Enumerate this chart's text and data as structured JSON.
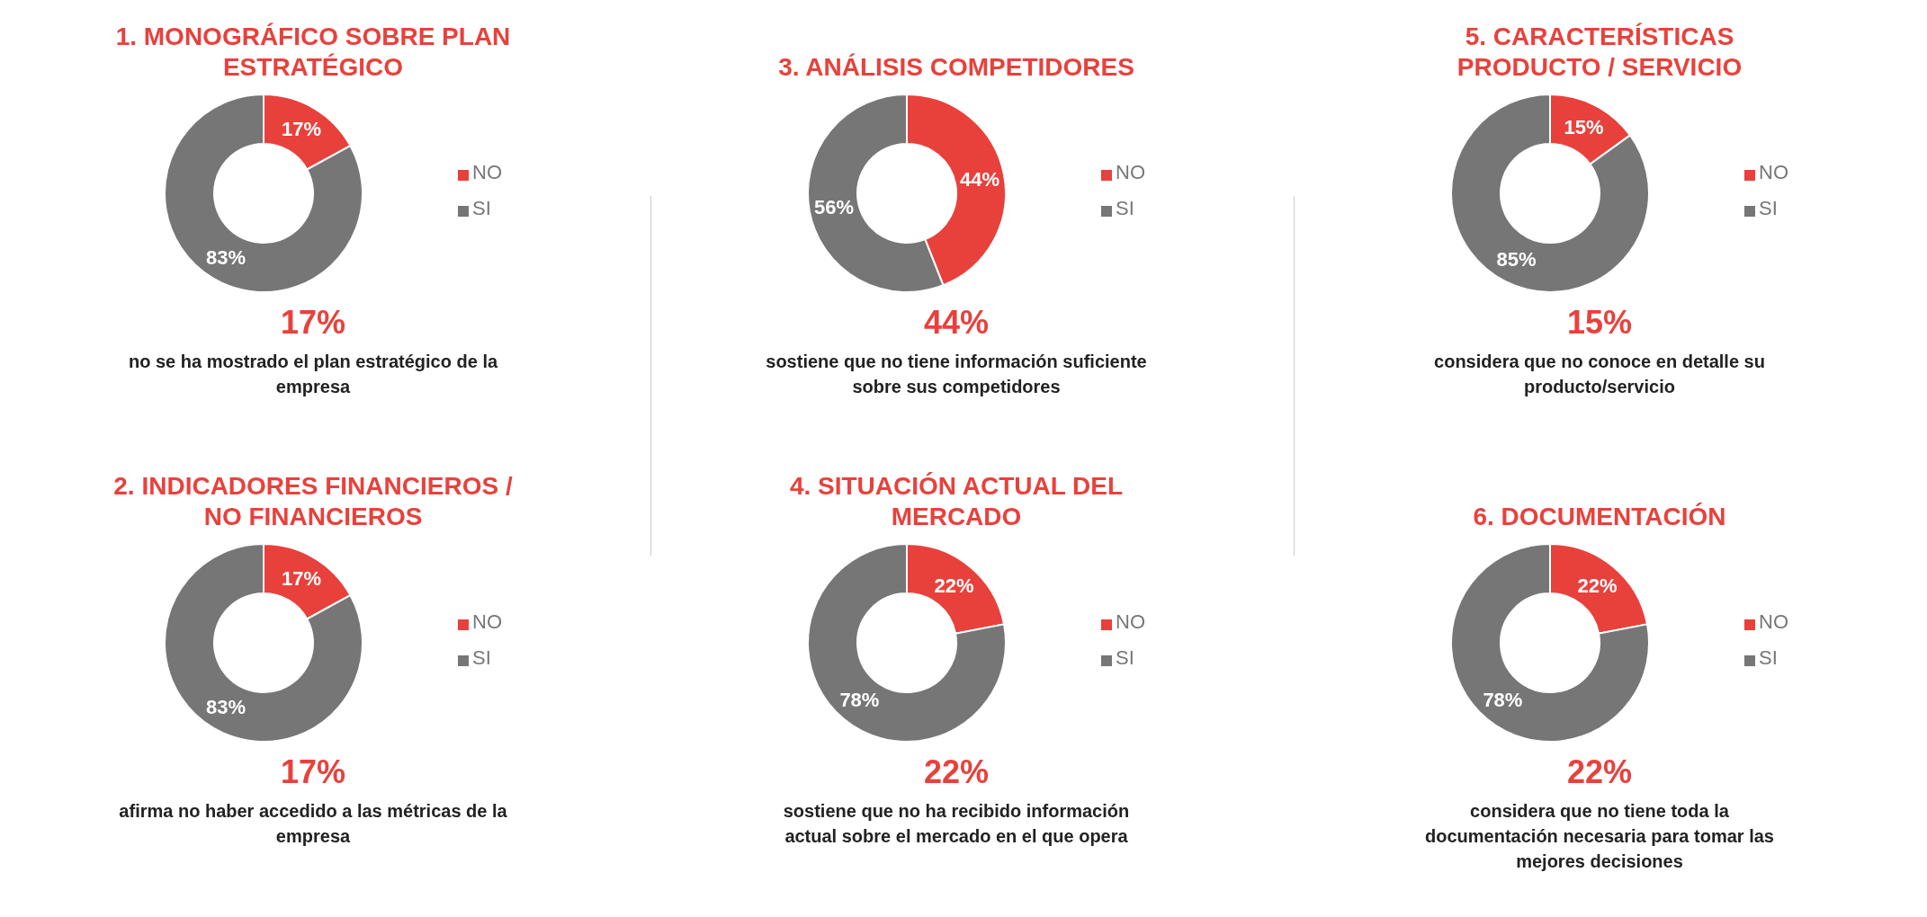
{
  "chart_data": [
    {
      "type": "donut",
      "title": "1. MONOGRÁFICO SOBRE PLAN ESTRATÉGICO",
      "categories": [
        "NO",
        "SI"
      ],
      "values": [
        17,
        83
      ],
      "colors": [
        "#e8413c",
        "#767676"
      ],
      "value_labels": [
        "17%",
        "83%"
      ],
      "legend": "right",
      "annotations": [
        "17%",
        "no se ha mostrado el plan estratégico de la empresa"
      ]
    },
    {
      "type": "donut",
      "title": "2. INDICADORES FINANCIEROS / NO FINANCIEROS",
      "categories": [
        "NO",
        "SI"
      ],
      "values": [
        17,
        83
      ],
      "colors": [
        "#e8413c",
        "#767676"
      ],
      "value_labels": [
        "17%",
        "83%"
      ],
      "legend": "right",
      "annotations": [
        "17%",
        "afirma no haber accedido a las métricas de la empresa"
      ]
    },
    {
      "type": "donut",
      "title": "3. ANÁLISIS COMPETIDORES",
      "categories": [
        "NO",
        "SI"
      ],
      "values": [
        44,
        56
      ],
      "colors": [
        "#e8413c",
        "#767676"
      ],
      "value_labels": [
        "44%",
        "56%"
      ],
      "legend": "right",
      "annotations": [
        "44%",
        "sostiene que no tiene información suficiente sobre sus competidores"
      ]
    },
    {
      "type": "donut",
      "title": "4. SITUACIÓN ACTUAL DEL MERCADO",
      "categories": [
        "NO",
        "SI"
      ],
      "values": [
        22,
        78
      ],
      "colors": [
        "#e8413c",
        "#767676"
      ],
      "value_labels": [
        "22%",
        "78%"
      ],
      "legend": "right",
      "annotations": [
        "22%",
        "sostiene que no ha recibido información actual sobre el mercado en el que opera"
      ]
    },
    {
      "type": "donut",
      "title": "5. CARACTERÍSTICAS PRODUCTO / SERVICIO",
      "categories": [
        "NO",
        "SI"
      ],
      "values": [
        15,
        85
      ],
      "colors": [
        "#e8413c",
        "#767676"
      ],
      "value_labels": [
        "15%",
        "85%"
      ],
      "legend": "right",
      "annotations": [
        "15%",
        "considera que no conoce en detalle su producto/servicio"
      ]
    },
    {
      "type": "donut",
      "title": "6. DOCUMENTACIÓN",
      "categories": [
        "NO",
        "SI"
      ],
      "values": [
        22,
        78
      ],
      "colors": [
        "#e8413c",
        "#767676"
      ],
      "value_labels": [
        "22%",
        "78%"
      ],
      "legend": "right",
      "annotations": [
        "22%",
        "considera que no tiene toda la documentación necesaria para tomar las mejores decisiones"
      ]
    }
  ]
}
